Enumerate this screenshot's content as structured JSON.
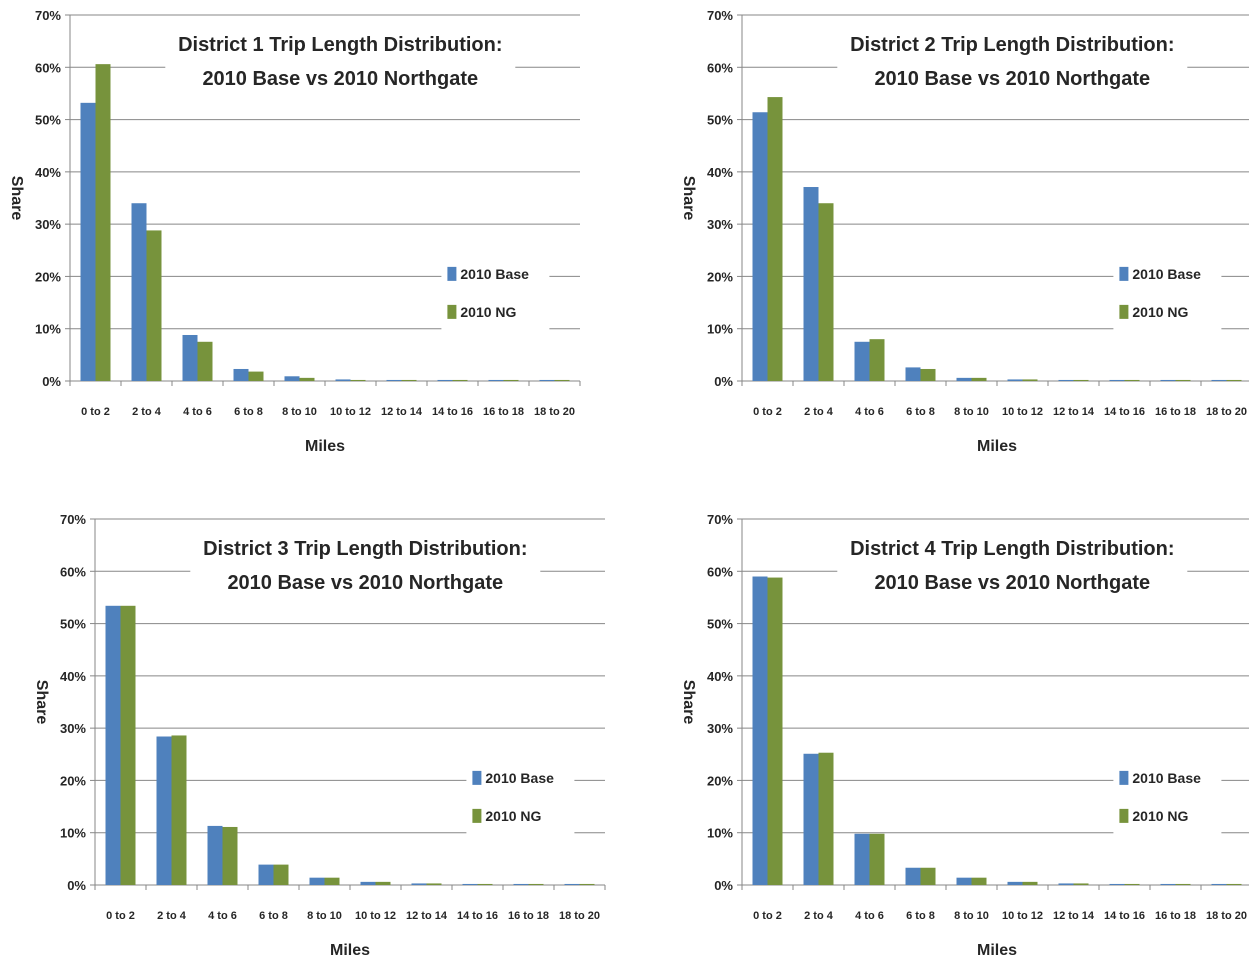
{
  "chart_data": [
    {
      "type": "bar",
      "title_lines": [
        "District 1 Trip Length Distribution:",
        "2010 Base vs 2010 Northgate"
      ],
      "xlabel": "Miles",
      "ylabel": "Share",
      "ylim": [
        0,
        70
      ],
      "yticks": [
        "0%",
        "10%",
        "20%",
        "30%",
        "40%",
        "50%",
        "60%",
        "70%"
      ],
      "grid": "horizontal",
      "legend_position": "right",
      "categories": [
        "0 to 2",
        "2 to 4",
        "4 to 6",
        "6 to 8",
        "8 to 10",
        "10 to 12",
        "12 to 14",
        "14 to 16",
        "16 to 18",
        "18 to 20"
      ],
      "series": [
        {
          "name": "2010 Base",
          "color": "#4F81BD",
          "values": [
            53.2,
            34.0,
            8.8,
            2.3,
            0.9,
            0.3,
            0.2,
            0.2,
            0.2,
            0.2
          ]
        },
        {
          "name": "2010 NG",
          "color": "#77933C",
          "values": [
            60.6,
            28.8,
            7.5,
            1.8,
            0.6,
            0.2,
            0.2,
            0.2,
            0.2,
            0.2
          ]
        }
      ]
    },
    {
      "type": "bar",
      "title_lines": [
        "District 2 Trip Length Distribution:",
        "2010 Base vs 2010 Northgate"
      ],
      "xlabel": "Miles",
      "ylabel": "Share",
      "ylim": [
        0,
        70
      ],
      "yticks": [
        "0%",
        "10%",
        "20%",
        "30%",
        "40%",
        "50%",
        "60%",
        "70%"
      ],
      "grid": "horizontal",
      "legend_position": "right",
      "categories": [
        "0 to 2",
        "2 to 4",
        "4 to 6",
        "6 to 8",
        "8 to 10",
        "10 to 12",
        "12 to 14",
        "14 to 16",
        "16 to 18",
        "18 to 20"
      ],
      "series": [
        {
          "name": "2010 Base",
          "color": "#4F81BD",
          "values": [
            51.4,
            37.1,
            7.5,
            2.6,
            0.6,
            0.3,
            0.2,
            0.2,
            0.2,
            0.2
          ]
        },
        {
          "name": "2010 NG",
          "color": "#77933C",
          "values": [
            54.3,
            34.0,
            8.0,
            2.3,
            0.6,
            0.3,
            0.2,
            0.2,
            0.2,
            0.2
          ]
        }
      ]
    },
    {
      "type": "bar",
      "title_lines": [
        "District 3 Trip Length Distribution:",
        "2010 Base vs 2010 Northgate"
      ],
      "xlabel": "Miles",
      "ylabel": "Share",
      "ylim": [
        0,
        70
      ],
      "yticks": [
        "0%",
        "10%",
        "20%",
        "30%",
        "40%",
        "50%",
        "60%",
        "70%"
      ],
      "grid": "horizontal",
      "legend_position": "right",
      "categories": [
        "0 to 2",
        "2 to 4",
        "4 to 6",
        "6 to 8",
        "8 to 10",
        "10 to 12",
        "12 to 14",
        "14 to 16",
        "16 to 18",
        "18 to 20"
      ],
      "series": [
        {
          "name": "2010 Base",
          "color": "#4F81BD",
          "values": [
            53.4,
            28.4,
            11.3,
            3.9,
            1.4,
            0.6,
            0.3,
            0.2,
            0.2,
            0.2
          ]
        },
        {
          "name": "2010 NG",
          "color": "#77933C",
          "values": [
            53.4,
            28.6,
            11.1,
            3.9,
            1.4,
            0.6,
            0.3,
            0.2,
            0.2,
            0.2
          ]
        }
      ]
    },
    {
      "type": "bar",
      "title_lines": [
        "District 4 Trip Length Distribution:",
        "2010 Base vs 2010 Northgate"
      ],
      "xlabel": "Miles",
      "ylabel": "Share",
      "ylim": [
        0,
        70
      ],
      "yticks": [
        "0%",
        "10%",
        "20%",
        "30%",
        "40%",
        "50%",
        "60%",
        "70%"
      ],
      "grid": "horizontal",
      "legend_position": "right",
      "categories": [
        "0 to 2",
        "2 to 4",
        "4 to 6",
        "6 to 8",
        "8 to 10",
        "10 to 12",
        "12 to 14",
        "14 to 16",
        "16 to 18",
        "18 to 20"
      ],
      "series": [
        {
          "name": "2010 Base",
          "color": "#4F81BD",
          "values": [
            59.0,
            25.1,
            9.8,
            3.3,
            1.4,
            0.6,
            0.3,
            0.2,
            0.2,
            0.2
          ]
        },
        {
          "name": "2010 NG",
          "color": "#77933C",
          "values": [
            58.8,
            25.3,
            9.8,
            3.3,
            1.4,
            0.6,
            0.3,
            0.2,
            0.2,
            0.2
          ]
        }
      ]
    }
  ]
}
